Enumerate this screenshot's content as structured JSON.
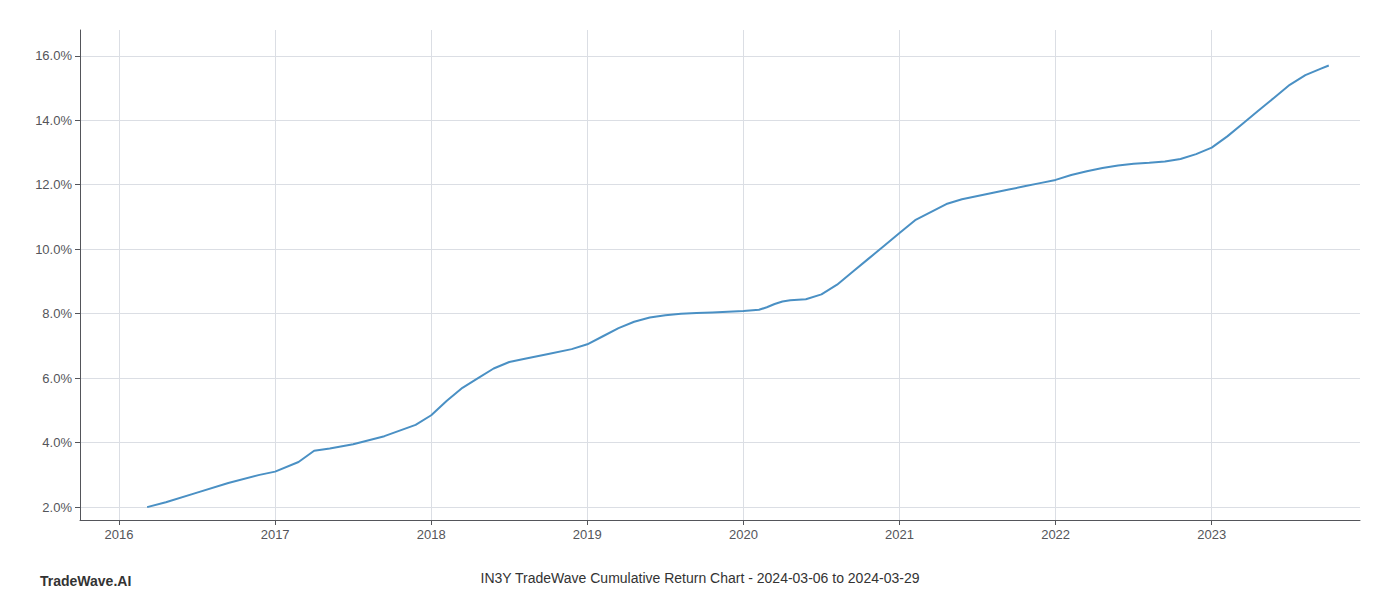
{
  "chart_data": {
    "type": "line",
    "title": "IN3Y TradeWave Cumulative Return Chart - 2024-03-06 to 2024-03-29",
    "annotations": [
      "TradeWave.AI"
    ],
    "color": "#4a90c4",
    "grid": true,
    "x": [
      2016.18,
      2016.3,
      2016.5,
      2016.7,
      2016.9,
      2017.0,
      2017.15,
      2017.25,
      2017.35,
      2017.5,
      2017.7,
      2017.9,
      2018.0,
      2018.1,
      2018.2,
      2018.3,
      2018.4,
      2018.5,
      2018.6,
      2018.75,
      2018.9,
      2019.0,
      2019.1,
      2019.2,
      2019.3,
      2019.4,
      2019.5,
      2019.6,
      2019.7,
      2019.8,
      2019.9,
      2020.0,
      2020.1,
      2020.15,
      2020.2,
      2020.25,
      2020.3,
      2020.4,
      2020.5,
      2020.6,
      2020.7,
      2020.8,
      2020.9,
      2021.0,
      2021.1,
      2021.2,
      2021.3,
      2021.4,
      2021.5,
      2021.6,
      2021.7,
      2021.8,
      2021.9,
      2022.0,
      2022.1,
      2022.2,
      2022.3,
      2022.4,
      2022.5,
      2022.6,
      2022.7,
      2022.8,
      2022.9,
      2023.0,
      2023.1,
      2023.2,
      2023.3,
      2023.4,
      2023.5,
      2023.6,
      2023.7,
      2023.75
    ],
    "values": [
      2.0,
      2.15,
      2.45,
      2.75,
      3.0,
      3.1,
      3.4,
      3.75,
      3.82,
      3.95,
      4.2,
      4.55,
      4.85,
      5.3,
      5.7,
      6.0,
      6.3,
      6.5,
      6.6,
      6.75,
      6.9,
      7.05,
      7.3,
      7.55,
      7.75,
      7.88,
      7.95,
      8.0,
      8.02,
      8.04,
      8.06,
      8.08,
      8.12,
      8.2,
      8.3,
      8.38,
      8.42,
      8.45,
      8.6,
      8.9,
      9.3,
      9.7,
      10.1,
      10.5,
      10.9,
      11.15,
      11.4,
      11.55,
      11.65,
      11.75,
      11.85,
      11.95,
      12.05,
      12.15,
      12.3,
      12.42,
      12.52,
      12.6,
      12.65,
      12.68,
      12.72,
      12.8,
      12.95,
      13.15,
      13.5,
      13.9,
      14.3,
      14.7,
      15.1,
      15.4,
      15.6,
      15.7
    ],
    "xlim": [
      2015.75,
      2023.95
    ],
    "xticks": [
      2016,
      2017,
      2018,
      2019,
      2020,
      2021,
      2022,
      2023
    ],
    "ylim": [
      1.6,
      16.8
    ],
    "yticks": [
      {
        "value": 2.0,
        "label": "2.0%"
      },
      {
        "value": 4.0,
        "label": "4.0%"
      },
      {
        "value": 6.0,
        "label": "6.0%"
      },
      {
        "value": 8.0,
        "label": "8.0%"
      },
      {
        "value": 10.0,
        "label": "10.0%"
      },
      {
        "value": 12.0,
        "label": "12.0%"
      },
      {
        "value": 14.0,
        "label": "14.0%"
      },
      {
        "value": 16.0,
        "label": "16.0%"
      }
    ]
  }
}
